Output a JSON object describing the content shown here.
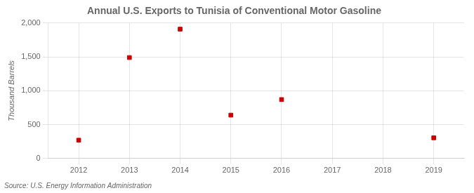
{
  "chart_data": {
    "type": "scatter",
    "title": "Annual U.S. Exports to Tunisia of Conventional Motor Gasoline",
    "ylabel": "Thousand Barrels",
    "source": "Source: U.S. Energy Information Administration",
    "x": [
      2012,
      2013,
      2014,
      2015,
      2016,
      2019
    ],
    "values": [
      270,
      1490,
      1910,
      640,
      870,
      305
    ],
    "color": "#cc0000",
    "marker": "square",
    "xlim": [
      2011.4,
      2019.6
    ],
    "xticks": [
      2012,
      2013,
      2014,
      2015,
      2016,
      2017,
      2018,
      2019
    ],
    "ylim": [
      0,
      2000
    ],
    "yticks": [
      0,
      500,
      {
        "value": 1000,
        "label": "1,000"
      },
      {
        "value": 1500,
        "label": "1,500"
      },
      {
        "value": 2000,
        "label": "2,000"
      }
    ],
    "grid": true
  }
}
